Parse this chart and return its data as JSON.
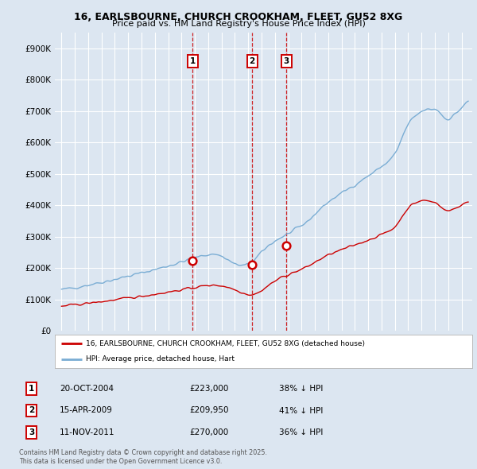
{
  "title_line1": "16, EARLSBOURNE, CHURCH CROOKHAM, FLEET, GU52 8XG",
  "title_line2": "Price paid vs. HM Land Registry's House Price Index (HPI)",
  "ylim": [
    0,
    950000
  ],
  "yticks": [
    0,
    100000,
    200000,
    300000,
    400000,
    500000,
    600000,
    700000,
    800000,
    900000
  ],
  "ytick_labels": [
    "£0",
    "£100K",
    "£200K",
    "£300K",
    "£400K",
    "£500K",
    "£600K",
    "£700K",
    "£800K",
    "£900K"
  ],
  "background_color": "#dce6f1",
  "plot_bg_color": "#dce6f1",
  "grid_color": "#ffffff",
  "hpi_color": "#7aadd4",
  "price_color": "#cc0000",
  "transaction_color": "#cc0000",
  "xlim_left": 1994.5,
  "xlim_right": 2025.8,
  "transactions": [
    {
      "num": 1,
      "date": "20-OCT-2004",
      "price": 223000,
      "label": "38% ↓ HPI",
      "x_year": 2004.83
    },
    {
      "num": 2,
      "date": "15-APR-2009",
      "price": 209950,
      "label": "41% ↓ HPI",
      "x_year": 2009.29
    },
    {
      "num": 3,
      "date": "11-NOV-2011",
      "price": 270000,
      "label": "36% ↓ HPI",
      "x_year": 2011.87
    }
  ],
  "legend_property_label": "16, EARLSBOURNE, CHURCH CROOKHAM, FLEET, GU52 8XG (detached house)",
  "legend_hpi_label": "HPI: Average price, detached house, Hart",
  "footer_line1": "Contains HM Land Registry data © Crown copyright and database right 2025.",
  "footer_line2": "This data is licensed under the Open Government Licence v3.0."
}
